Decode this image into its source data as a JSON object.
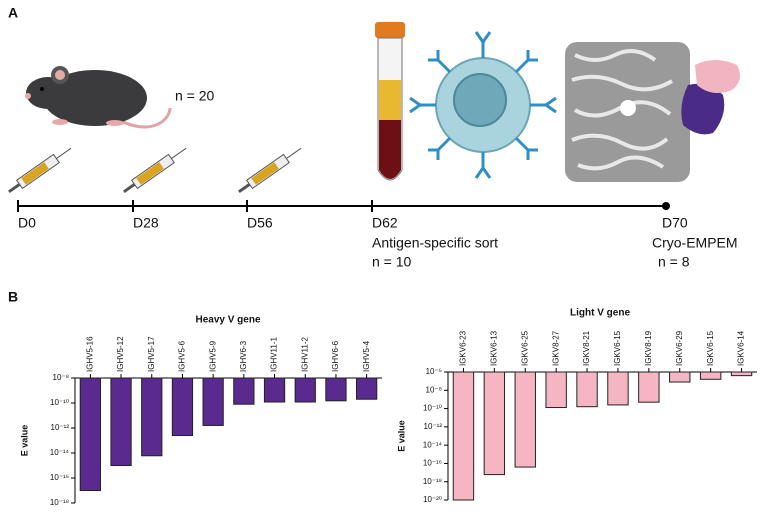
{
  "panel_a": {
    "label": "A",
    "mouse_n": "n = 20",
    "timepoints": [
      "D0",
      "D28",
      "D56",
      "D62",
      "D70"
    ],
    "sort_label": "Antigen-specific sort",
    "sort_n": "n = 10",
    "cryo_label": "Cryo-EMPEM",
    "cryo_n": "n = 8"
  },
  "panel_b_label": "B",
  "chart_data": [
    {
      "type": "bar",
      "title": "Heavy V gene",
      "y_label": "E value",
      "log_scale": true,
      "color": "#5a2a8e",
      "categories": [
        "IGHV5-16",
        "IGHV5-12",
        "IGHV5-17",
        "IGHV5-6",
        "IGHV5-9",
        "IGHV6-3",
        "IGHV11-1",
        "IGHV11-2",
        "IGHV6-6",
        "IGHV5-4"
      ],
      "values": [
        1e-17,
        1e-15,
        6e-15,
        2.5e-13,
        1.6e-12,
        8e-11,
        1.2e-10,
        1.2e-10,
        1.5e-10,
        2e-10
      ],
      "ylim": [
        1e-18,
        1e-08
      ],
      "yticks": [
        {
          "value": 1e-08,
          "label": "10⁻⁸"
        },
        {
          "value": 1e-10,
          "label": "10⁻¹⁰"
        },
        {
          "value": 1e-12,
          "label": "10⁻¹²"
        },
        {
          "value": 1e-14,
          "label": "10⁻¹⁴"
        },
        {
          "value": 1e-16,
          "label": "10⁻¹⁶"
        },
        {
          "value": 1e-18,
          "label": "10⁻¹⁸"
        }
      ]
    },
    {
      "type": "bar",
      "title": "Light V gene",
      "y_label": "E value",
      "log_scale": true,
      "color": "#f6b5c3",
      "categories": [
        "IGKV6-23",
        "IGKV6-13",
        "IGKV6-25",
        "IGKV8-27",
        "IGKV8-21",
        "IGKV6-15",
        "IGKV8-19",
        "IGKV6-29",
        "IGKV6-15",
        "IGKV6-14"
      ],
      "values": [
        1e-20,
        6e-18,
        4e-17,
        1.3e-10,
        1.6e-10,
        2.5e-10,
        5e-10,
        8e-08,
        1.6e-07,
        4e-07
      ],
      "ylim": [
        1e-20,
        1e-06
      ],
      "yticks": [
        {
          "value": 1e-06,
          "label": "10⁻⁶"
        },
        {
          "value": 1e-08,
          "label": "10⁻⁸"
        },
        {
          "value": 1e-10,
          "label": "10⁻¹⁰"
        },
        {
          "value": 1e-12,
          "label": "10⁻¹²"
        },
        {
          "value": 1e-14,
          "label": "10⁻¹⁴"
        },
        {
          "value": 1e-16,
          "label": "10⁻¹⁶"
        },
        {
          "value": 1e-18,
          "label": "10⁻¹⁸"
        },
        {
          "value": 1e-20,
          "label": "10⁻²⁰"
        }
      ]
    }
  ]
}
